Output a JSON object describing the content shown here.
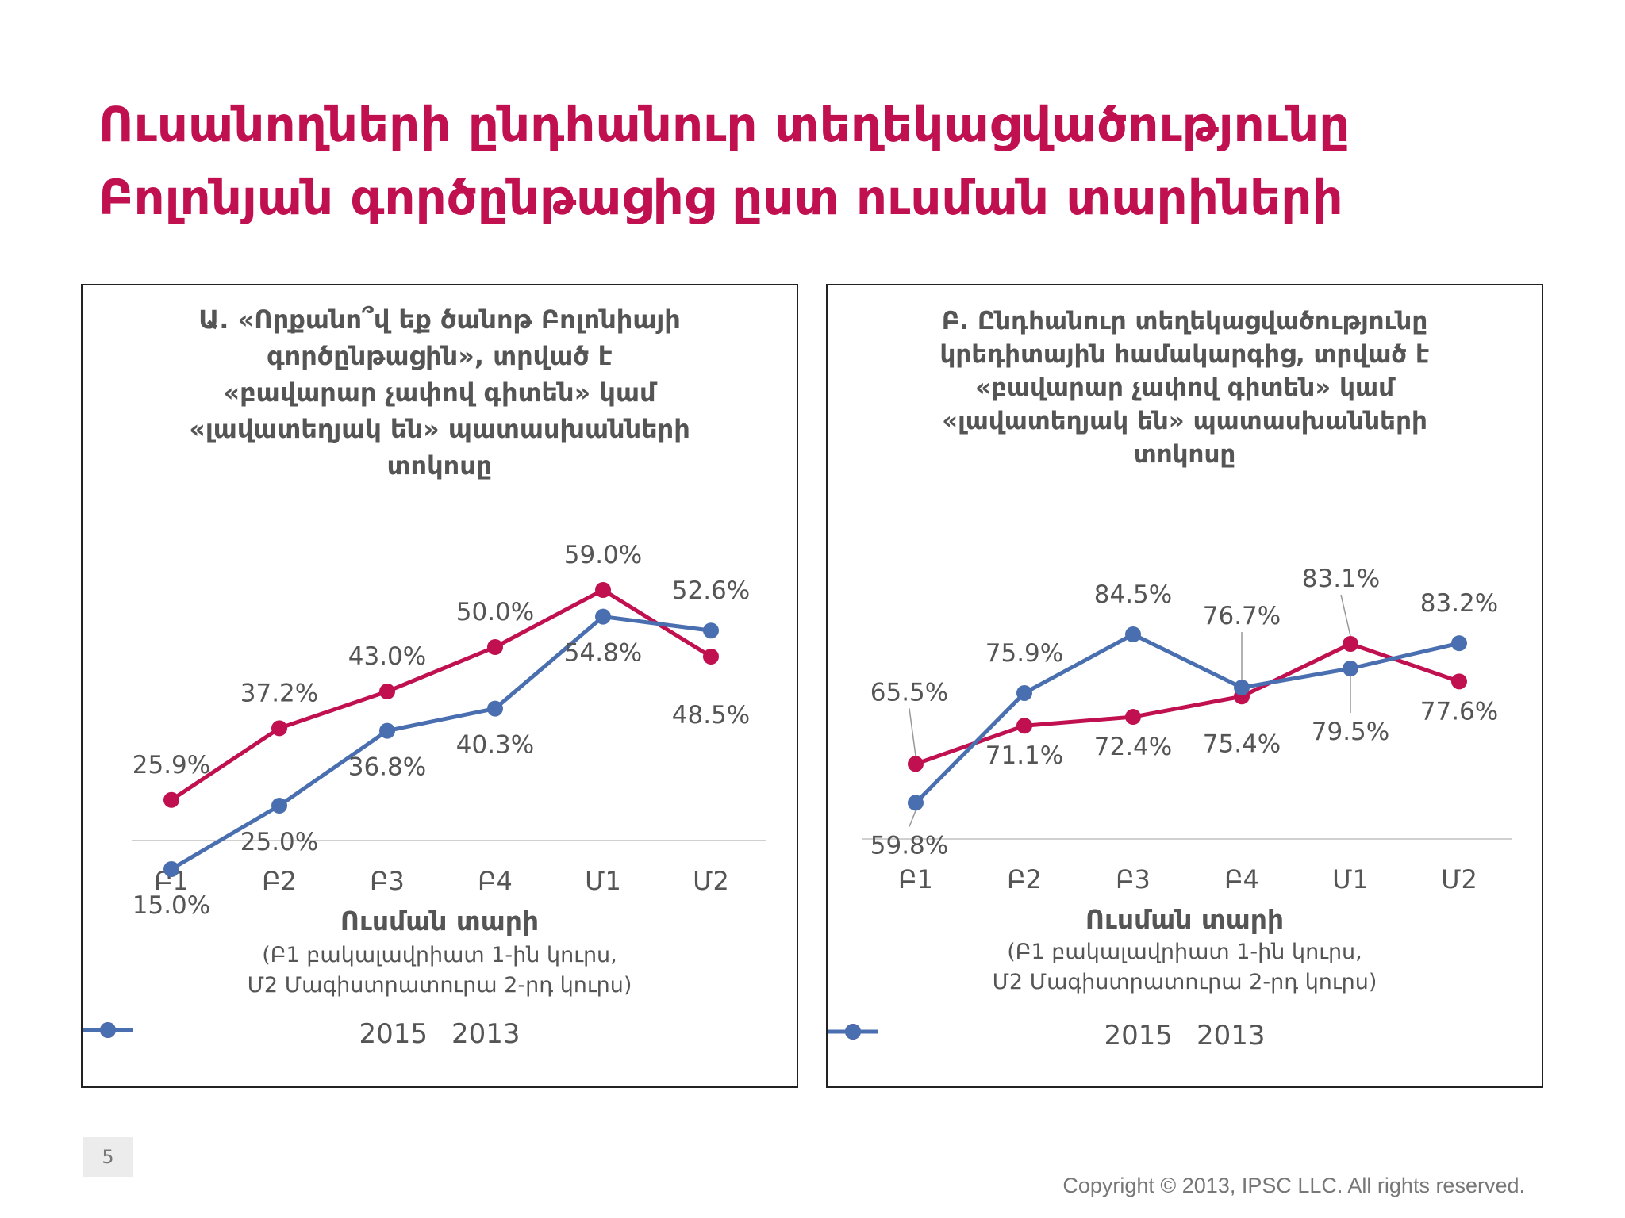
{
  "title": {
    "line1": "Ուսանողների ընդհանուր տեղեկացվածությունը",
    "line2": "Բոլոնյան գործընթացից ըստ ուսման տարիների"
  },
  "page_number": "5",
  "copyright": "Copyright © 2013, IPSC LLC. All rights reserved.",
  "colors": {
    "title": "#c0104f",
    "s2015": "#c0104f",
    "s2013": "#4a6fb0"
  },
  "chart_data": [
    {
      "type": "line",
      "title_lines": [
        "Ա. «Որքանո՞վ եք ծանոթ Բոլոնիայի",
        "գործընթացին», տրված է",
        "«բավարար չափով գիտեն» կամ",
        "«լավատեղյակ են» պատասխանների",
        "տոկոսը"
      ],
      "categories": [
        "Բ1",
        "Բ2",
        "Բ3",
        "Բ4",
        "Մ1",
        "Մ2"
      ],
      "xlabel": "Ուսման տարի",
      "xlabel_note": [
        "(Բ1 բակալավրիատ 1-ին կուրս,",
        "Մ2 Մագիստրատուրա 2-րդ կուրս)"
      ],
      "series": [
        {
          "name": "2015",
          "values": [
            25.9,
            37.2,
            43.0,
            50.0,
            59.0,
            48.5
          ],
          "labels": [
            "25.9%",
            "37.2%",
            "43.0%",
            "50.0%",
            "59.0%",
            "48.5%"
          ]
        },
        {
          "name": "2013",
          "values": [
            15.0,
            25.0,
            36.8,
            40.3,
            54.8,
            52.6
          ],
          "labels": [
            "15.0%",
            "25.0%",
            "36.8%",
            "40.3%",
            "54.8%",
            "52.6%"
          ]
        }
      ],
      "legend": "bottom",
      "grid": false
    },
    {
      "type": "line",
      "title_lines": [
        "Բ. Ընդհանուր տեղեկացվածությունը",
        "կրեդիտային համակարգից, տրված է",
        "«բավարար չափով գիտեն» կամ",
        "«լավատեղյակ են» պատասխանների",
        "տոկոսը"
      ],
      "categories": [
        "Բ1",
        "Բ2",
        "Բ3",
        "Բ4",
        "Մ1",
        "Մ2"
      ],
      "xlabel": "Ուսման տարի",
      "xlabel_note": [
        "(Բ1 բակալավրիատ 1-ին կուրս,",
        "Մ2 Մագիստրատուրա 2-րդ կուրս)"
      ],
      "series": [
        {
          "name": "2015",
          "values": [
            65.5,
            71.1,
            72.4,
            75.4,
            83.1,
            77.6
          ],
          "labels": [
            "65.5%",
            "71.1%",
            "72.4%",
            "75.4%",
            "83.1%",
            "77.6%"
          ]
        },
        {
          "name": "2013",
          "values": [
            59.8,
            75.9,
            84.5,
            76.7,
            79.5,
            83.2
          ],
          "labels": [
            "59.8%",
            "75.9%",
            "84.5%",
            "76.7%",
            "79.5%",
            "83.2%"
          ]
        }
      ],
      "legend": "bottom",
      "grid": false
    }
  ]
}
